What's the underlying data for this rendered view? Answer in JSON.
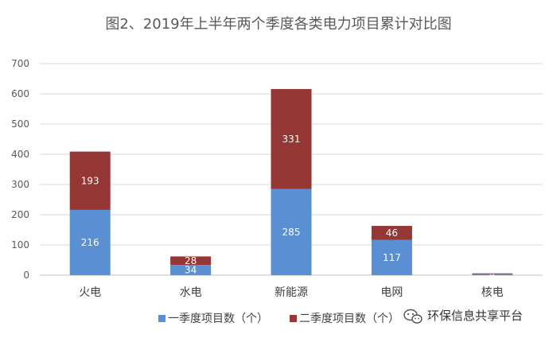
{
  "chart_data": {
    "type": "bar",
    "stacked": true,
    "title": "图2、2019年上半年两个季度各类电力项目累计对比图",
    "categories": [
      "火电",
      "水电",
      "新能源",
      "电网",
      "核电"
    ],
    "series": [
      {
        "name": "一季度项目数（个）",
        "values": [
          216,
          34,
          285,
          117,
          4
        ],
        "color": "#5B8FD4"
      },
      {
        "name": "二季度项目数（个）",
        "values": [
          193,
          28,
          331,
          46,
          2
        ],
        "color": "#953735"
      }
    ],
    "data_labels": [
      [
        "216",
        "34",
        "285",
        "117",
        "4"
      ],
      [
        "193",
        "28",
        "331",
        "46",
        ""
      ]
    ],
    "yticks": [
      0,
      100,
      200,
      300,
      400,
      500,
      600,
      700
    ],
    "ylim": [
      0,
      700
    ],
    "grid": true,
    "legend_position": "bottom-left"
  },
  "watermark": {
    "text": "环保信息共享平台",
    "icon": "wechat-icon"
  }
}
